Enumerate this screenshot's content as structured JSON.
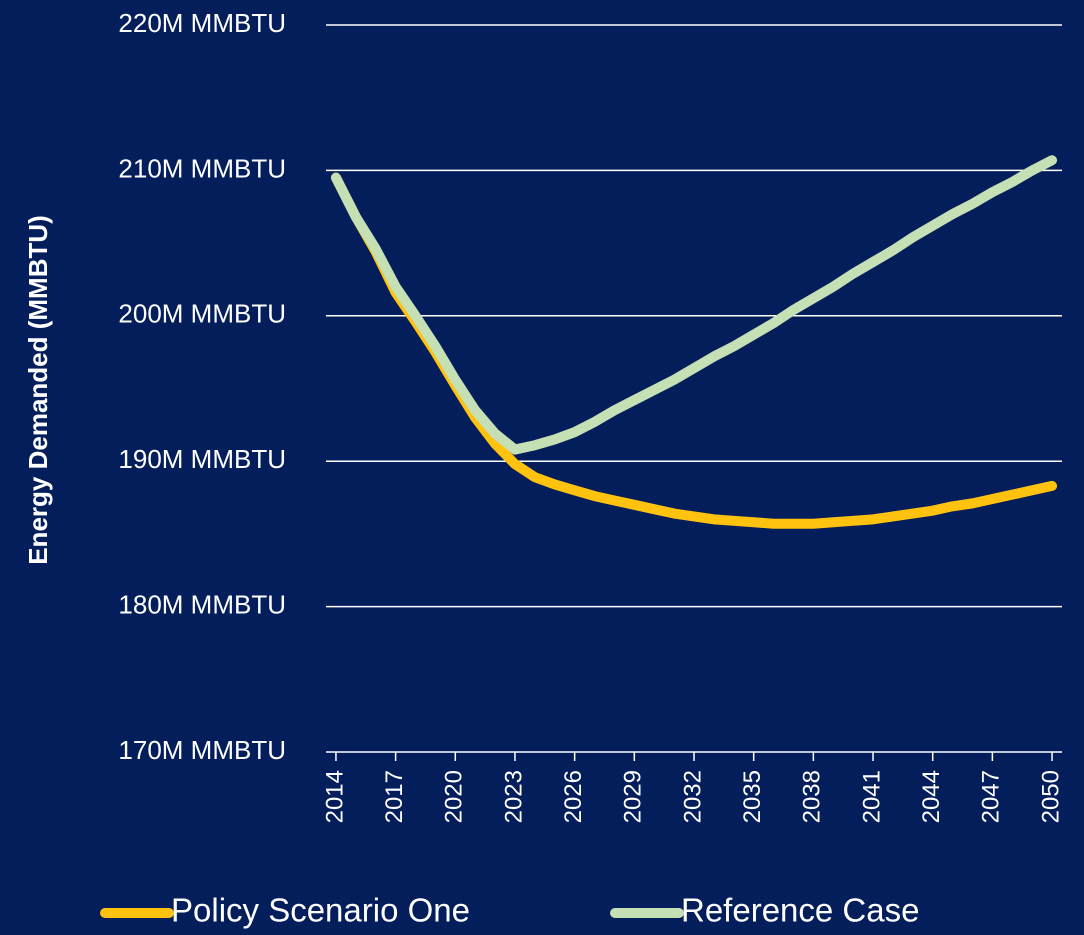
{
  "chart_data": {
    "type": "line",
    "y_label": "Energy Demanded (MMBTU)",
    "x": [
      2014,
      2015,
      2016,
      2017,
      2018,
      2019,
      2020,
      2021,
      2022,
      2023,
      2024,
      2025,
      2026,
      2027,
      2028,
      2029,
      2030,
      2031,
      2032,
      2033,
      2034,
      2035,
      2036,
      2037,
      2038,
      2039,
      2040,
      2041,
      2042,
      2043,
      2044,
      2045,
      2046,
      2047,
      2048,
      2049,
      2050
    ],
    "series": [
      {
        "name": "Policy Scenario One",
        "color": "#ffc20e",
        "values": [
          209500000,
          206800000,
          204400000,
          201600000,
          199600000,
          197500000,
          195200000,
          193000000,
          191200000,
          189800000,
          188900000,
          188400000,
          188000000,
          187600000,
          187300000,
          187000000,
          186700000,
          186400000,
          186200000,
          186000000,
          185900000,
          185800000,
          185700000,
          185700000,
          185700000,
          185800000,
          185900000,
          186000000,
          186200000,
          186400000,
          186600000,
          186900000,
          187100000,
          187400000,
          187700000,
          188000000,
          188300000
        ]
      },
      {
        "name": "Reference Case",
        "color": "#c5e0b4",
        "values": [
          209500000,
          206800000,
          204600000,
          202000000,
          200000000,
          197900000,
          195600000,
          193500000,
          191900000,
          190800000,
          191100000,
          191500000,
          192000000,
          192700000,
          193500000,
          194200000,
          194900000,
          195600000,
          196400000,
          197200000,
          197900000,
          198700000,
          199500000,
          200400000,
          201200000,
          202000000,
          202900000,
          203700000,
          204500000,
          205400000,
          206200000,
          207000000,
          207700000,
          208500000,
          209200000,
          210000000,
          210700000
        ]
      }
    ],
    "xlim": [
      2013.5,
      2050.5
    ],
    "xticks": [
      2014,
      2017,
      2020,
      2023,
      2026,
      2029,
      2032,
      2035,
      2038,
      2041,
      2044,
      2047,
      2050
    ],
    "ylim": [
      170000000,
      220000000
    ],
    "yticks": [
      {
        "value": 170000000,
        "label": "170M MMBTU"
      },
      {
        "value": 180000000,
        "label": "180M MMBTU"
      },
      {
        "value": 190000000,
        "label": "190M MMBTU"
      },
      {
        "value": 200000000,
        "label": "200M MMBTU"
      },
      {
        "value": 210000000,
        "label": "210M MMBTU"
      },
      {
        "value": 220000000,
        "label": "220M MMBTU"
      }
    ],
    "grid": true,
    "legend": "bottom"
  }
}
